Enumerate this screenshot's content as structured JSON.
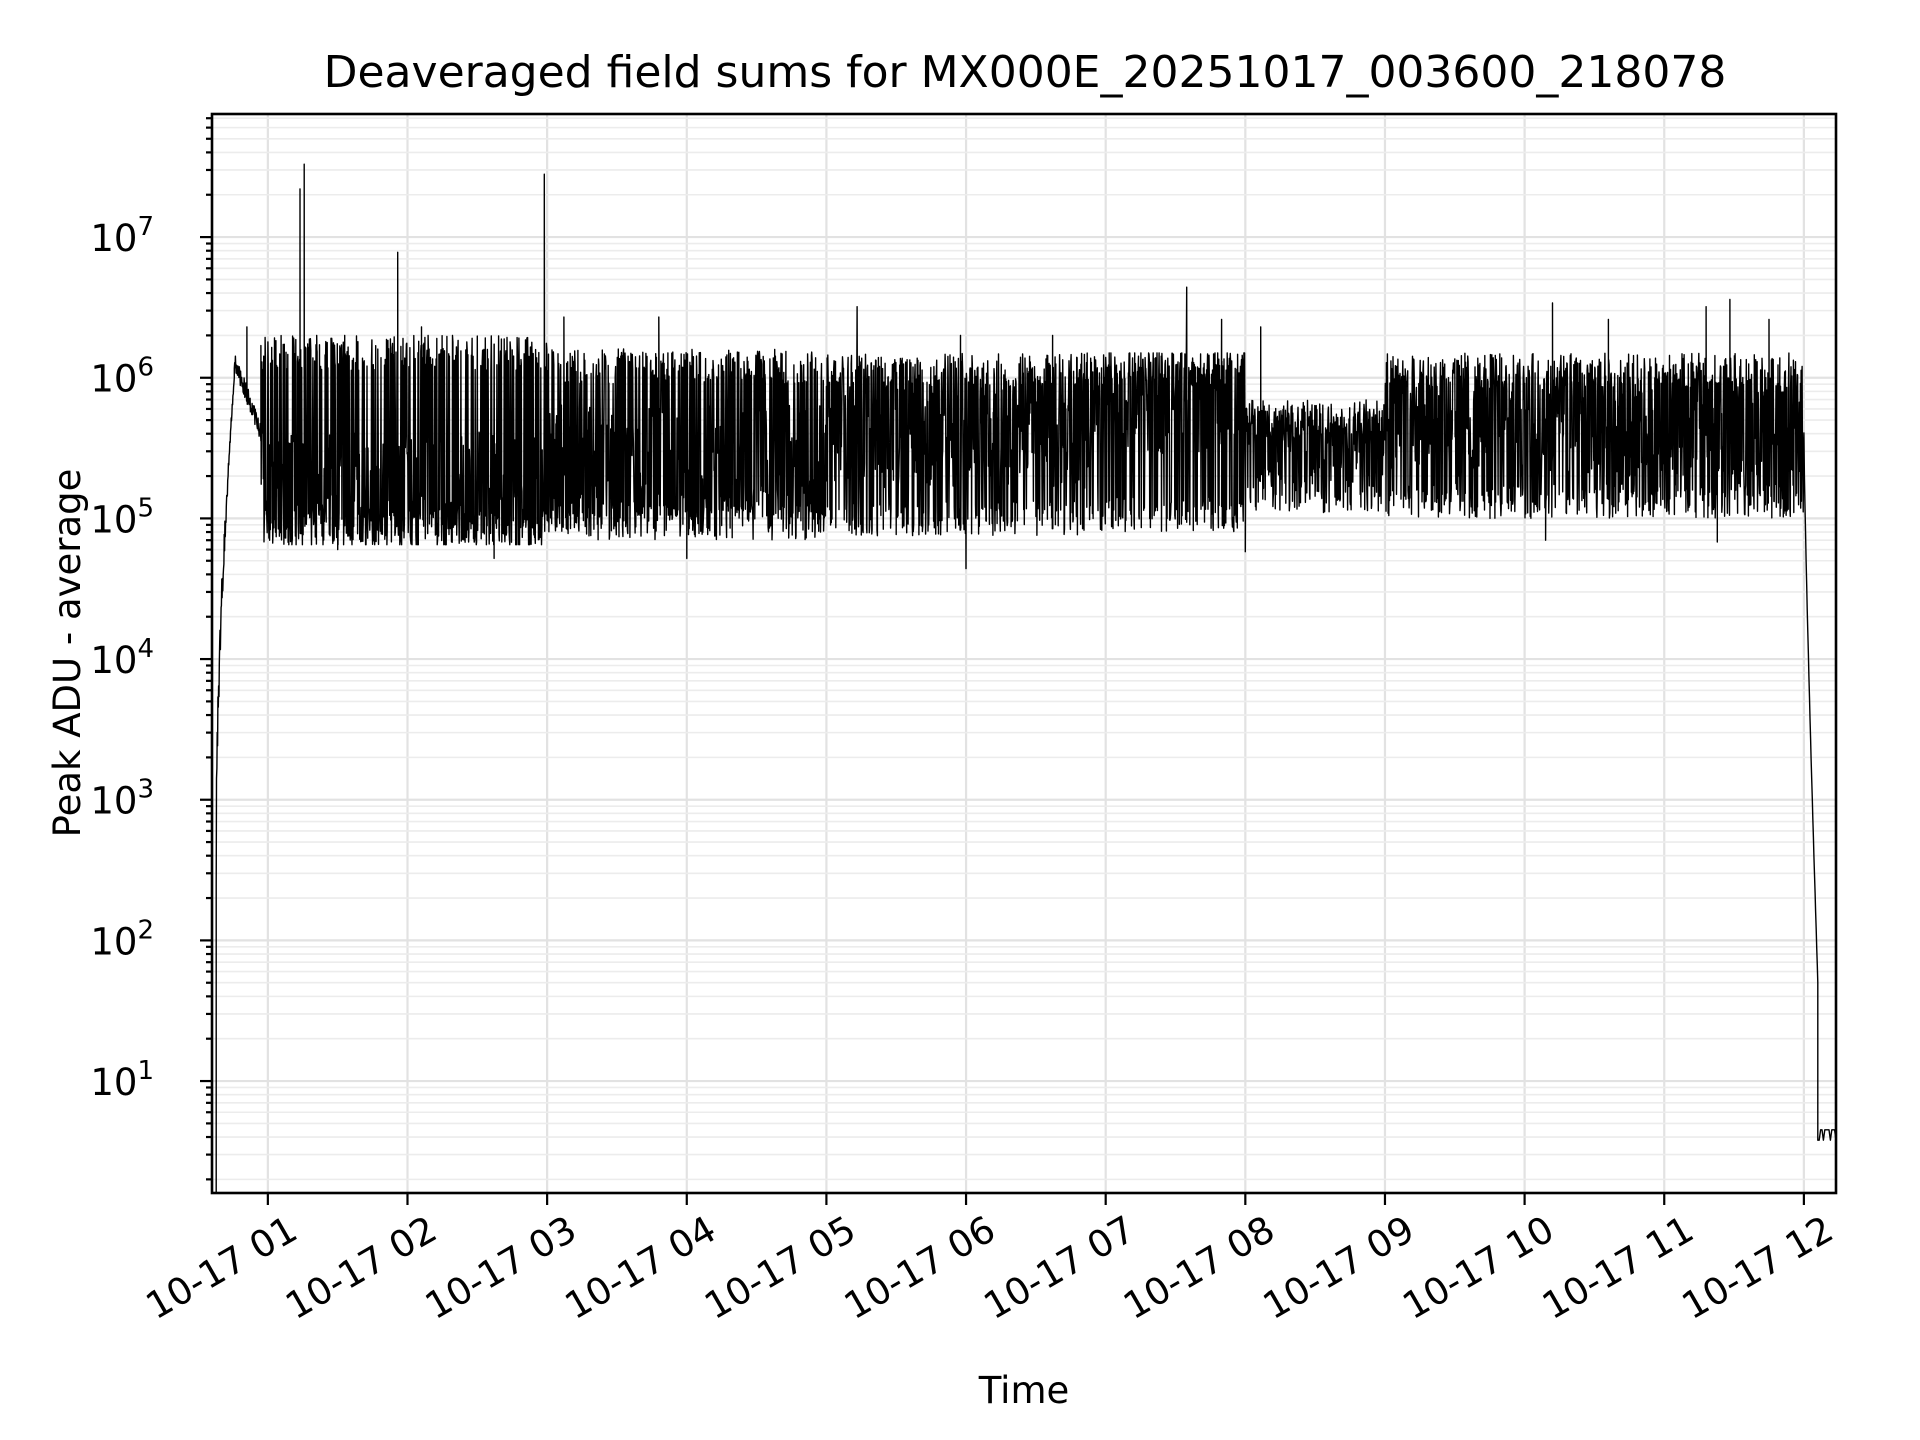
{
  "chart_data": {
    "type": "line",
    "title": "Deaveraged field sums for MX000E_20251017_003600_218078",
    "xlabel": "Time",
    "ylabel": "Peak ADU - average",
    "yscale": "log",
    "ylim": [
      1.6,
      75000000
    ],
    "xlim_hours": [
      0.6,
      12.23
    ],
    "grid": true,
    "line_color": "#000000",
    "x_ticks": [
      {
        "hour": 1,
        "label": "10-17 01"
      },
      {
        "hour": 2,
        "label": "10-17 02"
      },
      {
        "hour": 3,
        "label": "10-17 03"
      },
      {
        "hour": 4,
        "label": "10-17 04"
      },
      {
        "hour": 5,
        "label": "10-17 05"
      },
      {
        "hour": 6,
        "label": "10-17 06"
      },
      {
        "hour": 7,
        "label": "10-17 07"
      },
      {
        "hour": 8,
        "label": "10-17 08"
      },
      {
        "hour": 9,
        "label": "10-17 09"
      },
      {
        "hour": 10,
        "label": "10-17 10"
      },
      {
        "hour": 11,
        "label": "10-17 11"
      },
      {
        "hour": 12,
        "label": "10-17 12"
      }
    ],
    "y_ticks": [
      {
        "exp": 1,
        "base": "10",
        "sup": "1"
      },
      {
        "exp": 2,
        "base": "10",
        "sup": "2"
      },
      {
        "exp": 3,
        "base": "10",
        "sup": "3"
      },
      {
        "exp": 4,
        "base": "10",
        "sup": "4"
      },
      {
        "exp": 5,
        "base": "10",
        "sup": "5"
      },
      {
        "exp": 6,
        "base": "10",
        "sup": "6"
      },
      {
        "exp": 7,
        "base": "10",
        "sup": "7"
      }
    ],
    "series": [
      {
        "name": "Peak ADU - average",
        "segments": [
          {
            "hours": [
              0.6,
              0.63
            ],
            "floor": 1.6,
            "center": 1.6,
            "ceiling": 1.6,
            "note": "start"
          },
          {
            "hours": [
              0.63,
              0.76
            ],
            "floor": 300,
            "center": 100000,
            "ceiling": 1000000,
            "note": "ramp up"
          },
          {
            "hours": [
              0.76,
              0.95
            ],
            "floor": 400000,
            "center": 1200000,
            "ceiling": 1300000,
            "note": "early peak"
          },
          {
            "hours": [
              0.95,
              3.0
            ],
            "floor": 65000,
            "center": 150000,
            "ceiling": 2000000
          },
          {
            "hours": [
              3.0,
              5.0
            ],
            "floor": 70000,
            "center": 250000,
            "ceiling": 1600000
          },
          {
            "hours": [
              5.0,
              7.0
            ],
            "floor": 75000,
            "center": 400000,
            "ceiling": 1500000
          },
          {
            "hours": [
              7.0,
              8.0
            ],
            "floor": 80000,
            "center": 700000,
            "ceiling": 1500000
          },
          {
            "hours": [
              8.0,
              9.0
            ],
            "floor": 110000,
            "center": 350000,
            "ceiling": 700000
          },
          {
            "hours": [
              9.0,
              12.0
            ],
            "floor": 100000,
            "center": 450000,
            "ceiling": 1500000
          },
          {
            "hours": [
              12.0,
              12.1
            ],
            "floor": 50,
            "center": 400000,
            "ceiling": 400000,
            "note": "drop"
          },
          {
            "hours": [
              12.1,
              12.23
            ],
            "floor": 3.8,
            "center": 4,
            "ceiling": 4.5,
            "note": "end"
          }
        ],
        "spikes": [
          {
            "hour": 0.58,
            "value": 130000
          },
          {
            "hour": 0.85,
            "value": 2300000
          },
          {
            "hour": 1.23,
            "value": 22000000
          },
          {
            "hour": 1.26,
            "value": 33000000
          },
          {
            "hour": 1.35,
            "value": 2000000
          },
          {
            "hour": 1.55,
            "value": 2000000
          },
          {
            "hour": 1.93,
            "value": 7800000
          },
          {
            "hour": 2.1,
            "value": 2300000
          },
          {
            "hour": 2.98,
            "value": 28000000
          },
          {
            "hour": 3.12,
            "value": 2700000
          },
          {
            "hour": 3.8,
            "value": 2700000
          },
          {
            "hour": 5.22,
            "value": 3200000
          },
          {
            "hour": 5.96,
            "value": 2000000
          },
          {
            "hour": 6.62,
            "value": 2000000
          },
          {
            "hour": 7.58,
            "value": 4400000
          },
          {
            "hour": 7.83,
            "value": 2600000
          },
          {
            "hour": 8.11,
            "value": 2300000
          },
          {
            "hour": 10.2,
            "value": 3400000
          },
          {
            "hour": 10.6,
            "value": 2600000
          },
          {
            "hour": 11.3,
            "value": 3200000
          },
          {
            "hour": 11.47,
            "value": 3600000
          },
          {
            "hour": 11.75,
            "value": 2600000
          }
        ],
        "dips": [
          {
            "hour": 1.5,
            "value": 60000
          },
          {
            "hour": 2.62,
            "value": 52000
          },
          {
            "hour": 4.0,
            "value": 52000
          },
          {
            "hour": 6.0,
            "value": 44000
          },
          {
            "hour": 8.0,
            "value": 58000
          },
          {
            "hour": 10.15,
            "value": 70000
          },
          {
            "hour": 11.38,
            "value": 68000
          }
        ]
      }
    ]
  }
}
